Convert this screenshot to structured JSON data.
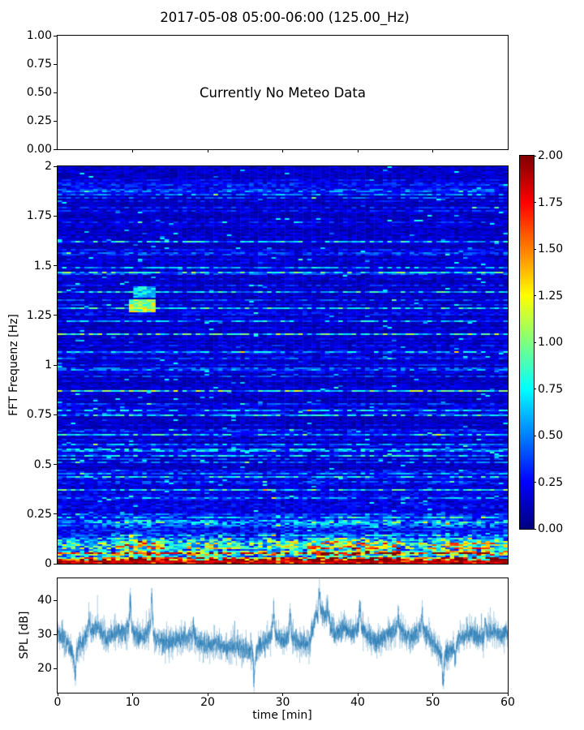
{
  "title": "2017-05-08 05:00-06:00 (125.00_Hz)",
  "meteo_panel": {
    "annotation": "Currently No Meteo Data",
    "ytick_labels": [
      "1.00",
      "0.75",
      "0.50",
      "0.25",
      "0.00"
    ]
  },
  "spectrogram": {
    "ylabel": "FFT Frequenz [Hz]",
    "ytick_labels": [
      "2",
      "1.75",
      "1.5",
      "1.25",
      "1",
      "0.75",
      "0.5",
      "0.25",
      "0"
    ]
  },
  "colorbar": {
    "tick_labels": [
      "2.00",
      "1.75",
      "1.50",
      "1.25",
      "1.00",
      "0.75",
      "0.50",
      "0.25",
      "0.00"
    ],
    "vmin": 0.0,
    "vmax": 2.0,
    "colormap": "jet"
  },
  "spl_panel": {
    "ylabel": "SPL [dB]",
    "xlabel": "time [min]",
    "ytick_labels": [
      "40",
      "30",
      "20"
    ],
    "ytick_values": [
      40,
      30,
      20
    ],
    "xtick_labels": [
      "0",
      "10",
      "20",
      "30",
      "40",
      "50",
      "60"
    ]
  },
  "chart_data": [
    {
      "type": "empty",
      "panel": "meteo",
      "annotation": "Currently No Meteo Data",
      "ylim": [
        0.0,
        1.0
      ],
      "yticks": [
        1.0,
        0.75,
        0.5,
        0.25,
        0.0
      ],
      "xlim": [
        0,
        60
      ],
      "unlabeled_xticks_min": [
        10,
        20,
        30,
        40,
        50
      ],
      "grid": false
    },
    {
      "type": "heatmap",
      "panel": "spectrogram",
      "ylabel": "FFT Frequenz [Hz]",
      "xlim_min": [
        0,
        60
      ],
      "ylim_hz": [
        0,
        2
      ],
      "yticks": [
        2,
        1.75,
        1.5,
        1.25,
        1,
        0.75,
        0.5,
        0.25,
        0
      ],
      "clim": [
        0.0,
        2.0
      ],
      "colormap": "jet",
      "summary": "Ambient-noise FFT spectrogram, horizontally streaked. Above 0.25 Hz values mostly 0.05-0.45 (dark/medium blue) with sparse brighter cyan streak rows; 0.12-0.25 Hz values 0.2-0.7; 0.05-0.12 Hz values 0.3-1.0 (cyan/green); below 0.05 Hz values 0.8-1.8 (yellow/orange/red) in bursts; bottom rows saturated 1.8-2.0 (dark red). Bright cyan anomaly patch near 1.3 Hz at 10-13 min.",
      "grid": {
        "cols": 101,
        "rows": 245
      },
      "seed": 20170508,
      "bursts": [
        {
          "t0": 7.5,
          "t1": 14,
          "gain": 1.45
        },
        {
          "t0": 17,
          "t1": 23,
          "gain": 1.15
        },
        {
          "t0": 27,
          "t1": 32,
          "gain": 1.2
        },
        {
          "t0": 33,
          "t1": 46,
          "gain": 1.5
        },
        {
          "t0": 49.5,
          "t1": 60,
          "gain": 1.35
        }
      ],
      "anomalies": [
        {
          "t0": 9.6,
          "t1": 13.2,
          "f0": 1.27,
          "f1": 1.33,
          "value": 1.05
        },
        {
          "t0": 10.2,
          "t1": 12.8,
          "f0": 1.34,
          "f1": 1.4,
          "value": 0.7
        }
      ]
    },
    {
      "type": "line",
      "panel": "spl",
      "xlabel": "time [min]",
      "ylabel": "SPL [dB]",
      "xlim": [
        0,
        60
      ],
      "ylim": [
        12.9,
        46.5
      ],
      "xticks": [
        0,
        10,
        20,
        30,
        40,
        50,
        60
      ],
      "yticks": [
        40,
        30,
        20
      ],
      "color": "#1f77b4",
      "seed": 125,
      "noise_sigma_db": 2.3,
      "envelope_t_min": [
        0,
        1,
        2.3,
        3,
        4.3,
        5.3,
        6.5,
        7.5,
        9,
        9.7,
        10.5,
        11.5,
        12.5,
        13,
        14.5,
        16.5,
        18,
        19.5,
        21,
        22.5,
        24,
        25.5,
        26.3,
        27,
        28.7,
        30,
        31,
        32,
        33.5,
        34.3,
        35,
        35.5,
        36.5,
        37.3,
        38,
        39,
        40.3,
        41,
        42.5,
        44,
        45.5,
        47,
        48.5,
        50,
        51.3,
        52.2,
        53.5,
        55,
        56.5,
        58,
        59,
        60
      ],
      "envelope_db": [
        30,
        29,
        23,
        27,
        31,
        32.5,
        29,
        30.5,
        30.5,
        34,
        29,
        29.5,
        32,
        29,
        27.5,
        29.5,
        29,
        27,
        27.5,
        26,
        26.5,
        25,
        24.5,
        26.5,
        30.5,
        28.5,
        29.5,
        27.5,
        27,
        35,
        37.5,
        36,
        32,
        30,
        32,
        30.5,
        32.5,
        30,
        28,
        30,
        32,
        29,
        31.5,
        28,
        23.5,
        25,
        28.5,
        30.5,
        29,
        31,
        29.5,
        30.5
      ],
      "spikes": [
        {
          "t": 2.35,
          "dy": -6
        },
        {
          "t": 4.2,
          "dy": 5
        },
        {
          "t": 9.7,
          "dy": 7
        },
        {
          "t": 12.55,
          "dy": 11
        },
        {
          "t": 18.1,
          "dy": 5
        },
        {
          "t": 26.2,
          "dy": -10
        },
        {
          "t": 28.8,
          "dy": 8
        },
        {
          "t": 31.0,
          "dy": 8
        },
        {
          "t": 34.9,
          "dy": 6.5
        },
        {
          "t": 36.0,
          "dy": 5
        },
        {
          "t": 40.3,
          "dy": 8
        },
        {
          "t": 45.4,
          "dy": 5
        },
        {
          "t": 48.6,
          "dy": 5
        },
        {
          "t": 51.4,
          "dy": -10
        },
        {
          "t": 53.0,
          "dy": -5
        },
        {
          "t": 57.0,
          "dy": 5
        }
      ]
    }
  ]
}
